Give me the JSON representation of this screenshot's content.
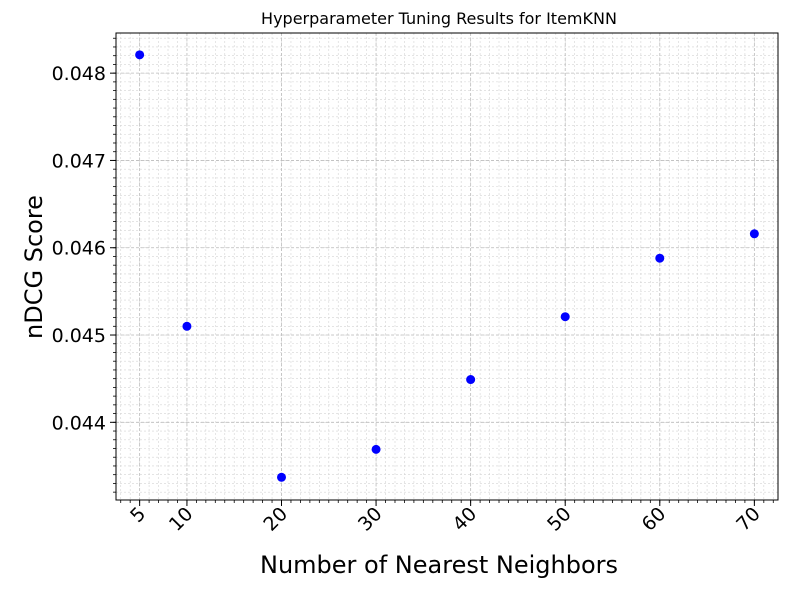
{
  "chart_data": {
    "type": "scatter",
    "title": "Hyperparameter Tuning Results for ItemKNN",
    "xlabel": "Number of Nearest Neighbors",
    "ylabel": "nDCG Score",
    "x": [
      5,
      10,
      20,
      30,
      40,
      50,
      60,
      70
    ],
    "y": [
      0.04821,
      0.0451,
      0.04337,
      0.04369,
      0.04449,
      0.04521,
      0.04588,
      0.04616
    ],
    "xticks": [
      5,
      10,
      20,
      30,
      40,
      50,
      60,
      70
    ],
    "xtick_labels": [
      "5",
      "10",
      "20",
      "30",
      "40",
      "50",
      "60",
      "70"
    ],
    "yticks": [
      0.044,
      0.045,
      0.046,
      0.047,
      0.048
    ],
    "ytick_labels": [
      "0.044",
      "0.045",
      "0.046",
      "0.047",
      "0.048"
    ],
    "xlim": [
      2.5,
      72.5
    ],
    "ylim": [
      0.04311,
      0.04846
    ],
    "grid": true,
    "grid_minor": true,
    "marker_color": "#0000ff"
  }
}
